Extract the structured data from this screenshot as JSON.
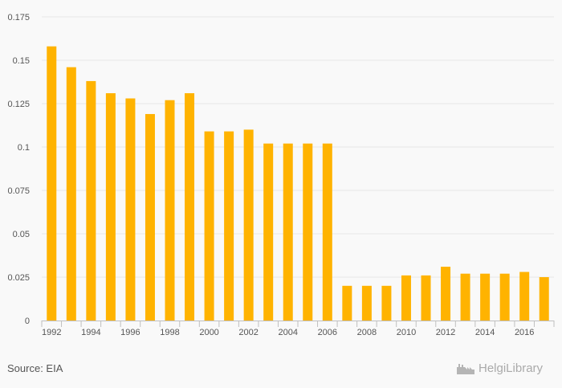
{
  "chart_data": {
    "type": "bar",
    "categories": [
      "1992",
      "1993",
      "1994",
      "1995",
      "1996",
      "1997",
      "1998",
      "1999",
      "2000",
      "2001",
      "2002",
      "2003",
      "2004",
      "2005",
      "2006",
      "2007",
      "2008",
      "2009",
      "2010",
      "2011",
      "2012",
      "2013",
      "2014",
      "2015",
      "2016",
      "2017"
    ],
    "values": [
      0.158,
      0.146,
      0.138,
      0.131,
      0.128,
      0.119,
      0.127,
      0.131,
      0.109,
      0.109,
      0.11,
      0.102,
      0.102,
      0.102,
      0.102,
      0.02,
      0.02,
      0.02,
      0.026,
      0.026,
      0.031,
      0.027,
      0.027,
      0.027,
      0.028,
      0.025
    ],
    "x_tick_labels": [
      "1992",
      "1994",
      "1996",
      "1998",
      "2000",
      "2002",
      "2004",
      "2006",
      "2008",
      "2010",
      "2012",
      "2014",
      "2016"
    ],
    "y_tick_labels": [
      "0",
      "0.025",
      "0.05",
      "0.075",
      "0.1",
      "0.125",
      "0.15",
      "0.175"
    ],
    "y_ticks": [
      0,
      0.025,
      0.05,
      0.075,
      0.1,
      0.125,
      0.15,
      0.175
    ],
    "ylim": [
      0,
      0.175
    ],
    "grid": true,
    "title": "",
    "xlabel": "",
    "ylabel": "",
    "bar_color": "#ffb300"
  },
  "source_text": "Source: EIA",
  "logo": {
    "text": "HelgiLibrary",
    "icon": "factory-icon"
  }
}
